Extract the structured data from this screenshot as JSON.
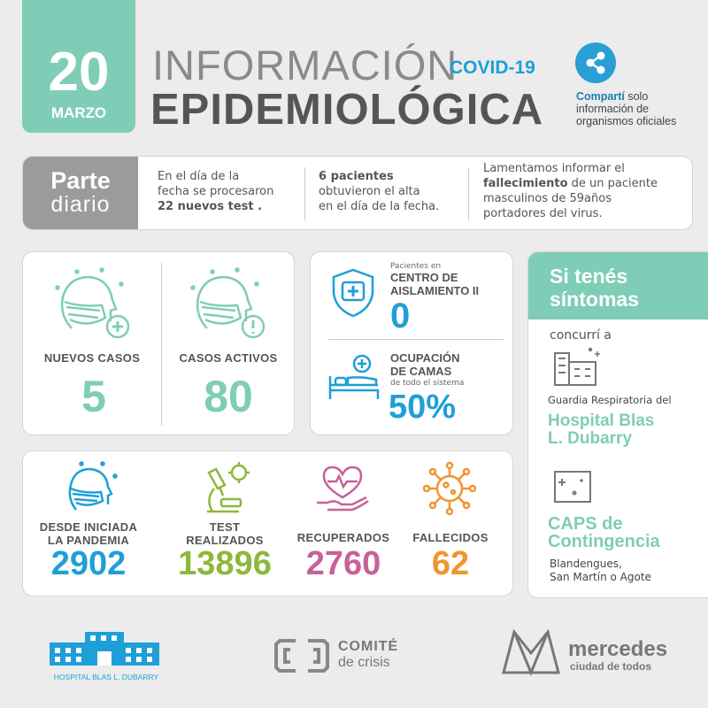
{
  "date": {
    "day": "20",
    "month": "MARZO"
  },
  "title": {
    "line1": "INFORMACIÓN",
    "tag": "COVID-19",
    "line2": "EPIDEMIOLÓGICA"
  },
  "share": {
    "bold": "Compartí",
    "rest1": " solo",
    "rest2": "información de",
    "rest3": "organismos oficiales"
  },
  "parte": {
    "word1": "Parte",
    "word2": "diario"
  },
  "notes": {
    "n1": {
      "a": "En el día de la",
      "b": "fecha se procesaron",
      "c": "22 nuevos test ."
    },
    "n2": {
      "a": "6 pacientes",
      "b": "obtuvieron el alta",
      "c": "en el día de la fecha."
    },
    "n3": {
      "a": "Lamentamos informar el",
      "b_bold": "fallecimiento",
      "b_rest": " de un paciente",
      "c": "masculinos de  59años",
      "d": "portadores del virus."
    }
  },
  "cases": {
    "nuevos": {
      "label": "NUEVOS CASOS",
      "value": "5"
    },
    "activos": {
      "label": "CASOS ACTIVOS",
      "value": "80"
    }
  },
  "center": {
    "small": "Pacientes en",
    "label1": "CENTRO DE",
    "label2": "AISLAMIENTO II",
    "value": "0",
    "ocup1": "OCUPACIÓN",
    "ocup2": "DE CAMAS",
    "ocup_small": "de todo el sistema",
    "ocup_value": "50%"
  },
  "stats": {
    "pandemia": {
      "l1": "DESDE INICIADA",
      "l2": "LA PANDEMIA",
      "value": "2902"
    },
    "test": {
      "l1": "TEST",
      "l2": "REALIZADOS",
      "value": "13896"
    },
    "recuperados": {
      "l1": "RECUPERADOS",
      "value": "2760"
    },
    "fallecidos": {
      "l1": "FALLECIDOS",
      "value": "62"
    }
  },
  "sintomas": {
    "h1": "Si tenés",
    "h2": "síntomas",
    "concurri": "concurrí a",
    "guardia": "Guardia Respiratoria del",
    "hosp1": "Hospital Blas",
    "hosp2": "L. Dubarry",
    "caps1": "CAPS de",
    "caps2": "Contingencia",
    "loc1": "Blandengues,",
    "loc2": "San Martín o Agote"
  },
  "footer": {
    "hospital": "HOSPITAL BLAS L. DUBARRY",
    "comite1": "COMITÉ",
    "comite2": "de crisis",
    "merc1": "mercedes",
    "merc2": "ciudad de todos"
  },
  "colors": {
    "teal": "#7fcdb6",
    "blue": "#1e9fd8",
    "green": "#8cb83c",
    "pink": "#c8609a",
    "orange": "#f0962e",
    "gray": "#a8a8a8"
  }
}
